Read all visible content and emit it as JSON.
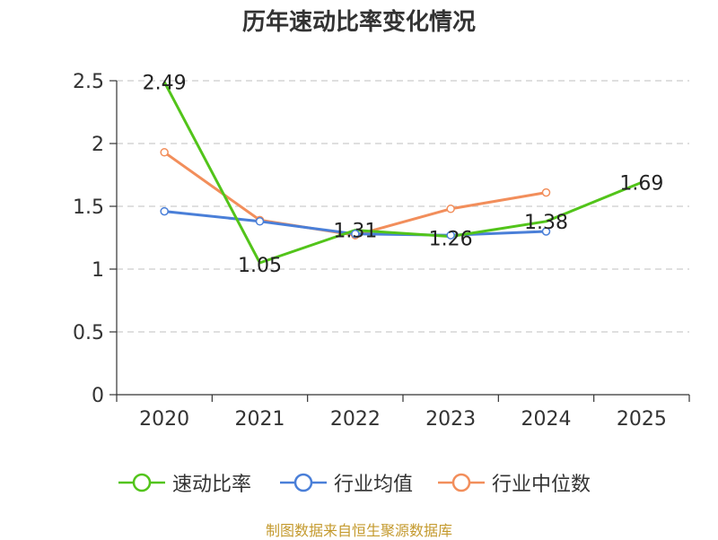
{
  "chart_data": {
    "type": "line",
    "title": "历年速动比率变化情况",
    "categories": [
      "2020",
      "2021",
      "2022",
      "2023",
      "2024",
      "2025"
    ],
    "y_ticks": [
      "0",
      "0.5",
      "1",
      "1.5",
      "2",
      "2.5"
    ],
    "ylim": [
      0,
      2.5
    ],
    "grid": true,
    "legend_position": "bottom",
    "series": [
      {
        "name": "速动比率",
        "color": "#52c41a",
        "values": [
          2.49,
          1.05,
          1.31,
          1.26,
          1.38,
          1.69
        ],
        "labels": [
          "2.49",
          "1.05",
          "1.31",
          "1.26",
          "1.38",
          "1.69"
        ]
      },
      {
        "name": "行业均值",
        "color": "#4a7fd8",
        "values": [
          1.46,
          1.38,
          1.28,
          1.27,
          1.3,
          null
        ]
      },
      {
        "name": "行业中位数",
        "color": "#f28e5b",
        "values": [
          1.93,
          1.39,
          1.27,
          1.48,
          1.61,
          null
        ]
      }
    ],
    "source": "制图数据来自恒生聚源数据库"
  }
}
